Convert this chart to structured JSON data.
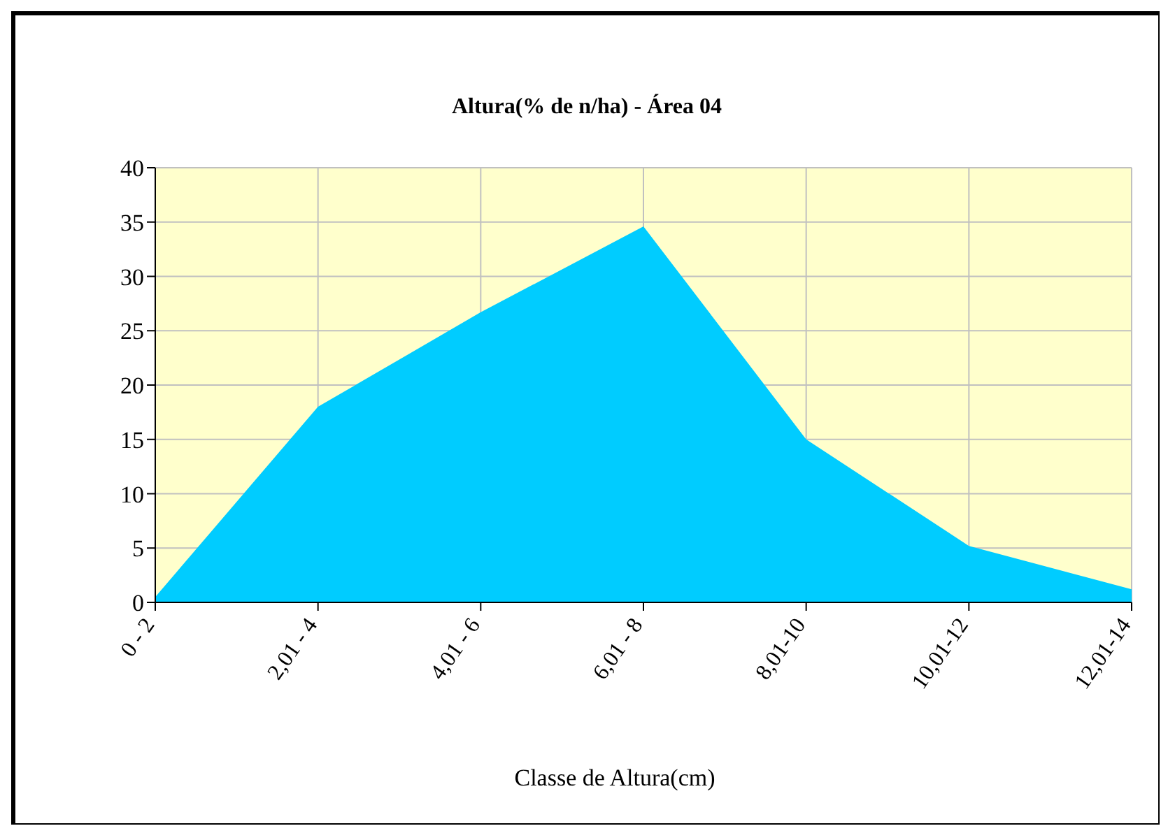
{
  "chart_data": {
    "type": "area",
    "title": "Altura(% de n/ha) - Área 04",
    "xlabel": "Classe de Altura(cm)",
    "categories": [
      "0 - 2",
      "2,01 - 4",
      "4,01 - 6",
      "6,01 - 8",
      "8,01-10",
      "10,01-12",
      "12,01-14"
    ],
    "values": [
      0.5,
      18,
      26.7,
      34.6,
      15,
      5.2,
      1.2
    ],
    "color": "#00ccff",
    "ylim": [
      0,
      40
    ],
    "yticks": [
      0,
      5,
      10,
      15,
      20,
      25,
      30,
      35,
      40
    ],
    "grid": true
  }
}
